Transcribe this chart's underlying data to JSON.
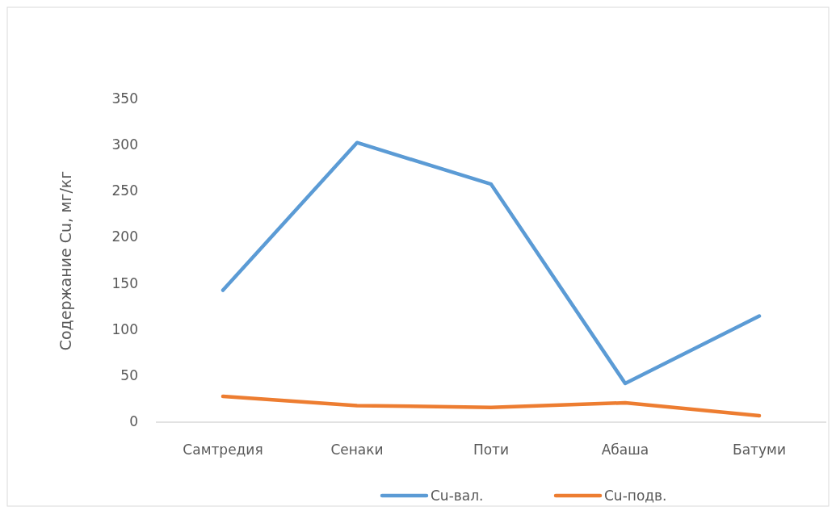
{
  "chart_data": {
    "type": "line",
    "ylabel": "Содержание Cu, мг/кг",
    "categories": [
      "Самтредия",
      "Сенаки",
      "Поти",
      "Абаша",
      "Батуми"
    ],
    "series": [
      {
        "name": "Cu-вал.",
        "color": "#5b9bd5",
        "values": [
          143,
          303,
          258,
          42,
          115
        ]
      },
      {
        "name": "Cu-подв.",
        "color": "#ed7d31",
        "values": [
          28,
          18,
          16,
          21,
          7
        ]
      }
    ],
    "ylim": [
      0,
      350
    ],
    "yticks": [
      0,
      50,
      100,
      150,
      200,
      250,
      300,
      350
    ],
    "grid": false,
    "legend": "bottom",
    "marker": "none"
  }
}
